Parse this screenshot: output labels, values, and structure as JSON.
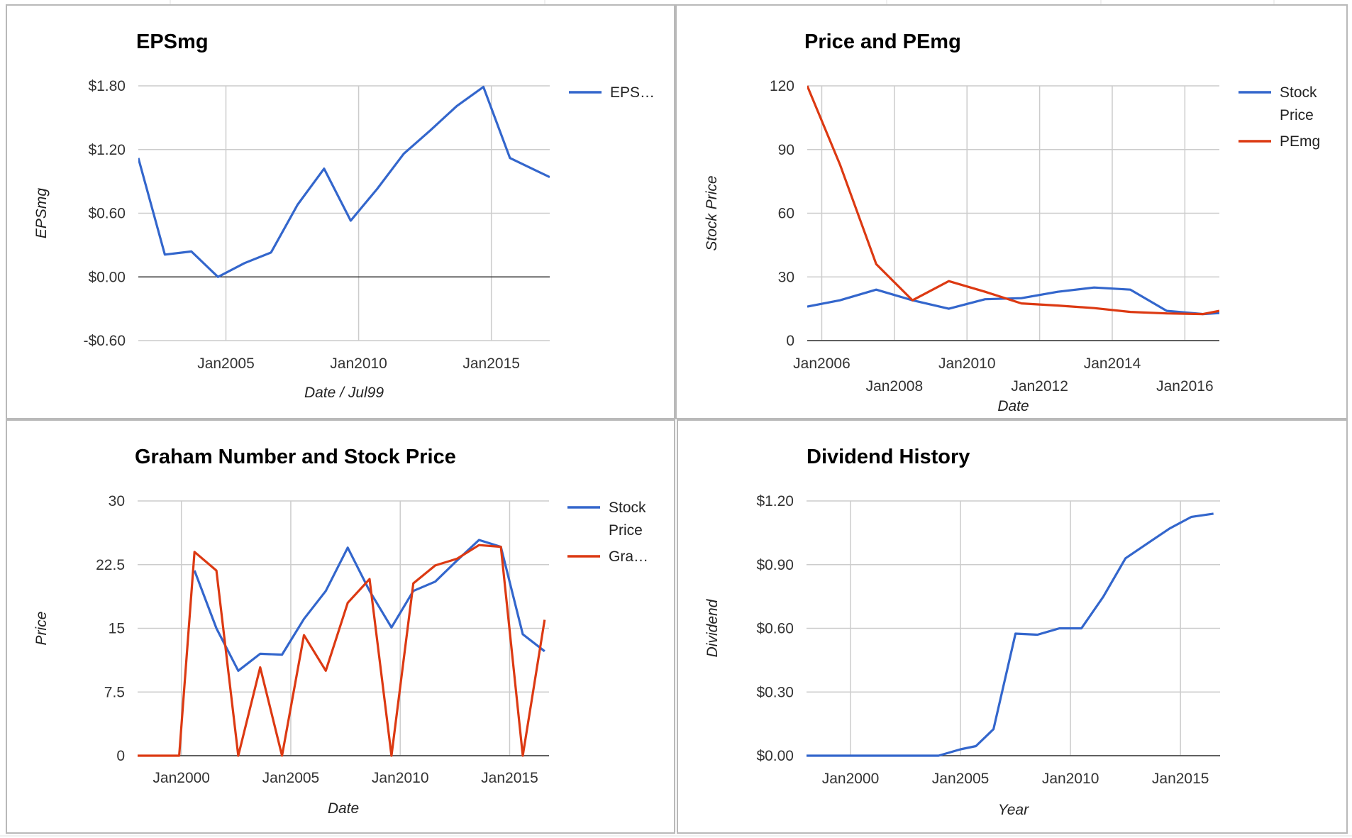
{
  "colors": {
    "blue": "#3366cc",
    "red": "#dc3912",
    "grid": "#cccccc"
  },
  "chart_data": [
    {
      "id": "eps",
      "type": "line",
      "title": "EPSmg",
      "xlabel": "Date / Jul99",
      "ylabel": "EPSmg",
      "xlim": [
        2001.7,
        2017.2
      ],
      "ylim": [
        -0.6,
        1.8
      ],
      "yticks": [
        -0.6,
        0,
        0.6,
        1.2,
        1.8
      ],
      "ytick_labels": [
        "-$0.60",
        "$0.00",
        "$0.60",
        "$1.20",
        "$1.80"
      ],
      "xticks": [
        2005,
        2010,
        2015
      ],
      "xtick_labels": [
        "Jan2005",
        "Jan2010",
        "Jan2015"
      ],
      "legend": [
        "EPS…"
      ],
      "legend_position": "right",
      "series": [
        {
          "name": "EPS…",
          "color": "#3366cc",
          "x": [
            2001.7,
            2002.7,
            2003.7,
            2004.7,
            2005.7,
            2006.7,
            2007.7,
            2008.7,
            2009.7,
            2010.7,
            2011.7,
            2012.7,
            2013.7,
            2014.7,
            2015.7,
            2016.7,
            2017.2
          ],
          "y": [
            1.12,
            0.21,
            0.24,
            0.0,
            0.13,
            0.23,
            0.68,
            1.02,
            0.53,
            0.83,
            1.16,
            1.38,
            1.61,
            1.79,
            1.12,
            1.0,
            0.94
          ]
        }
      ]
    },
    {
      "id": "price",
      "type": "line",
      "title": "Price and PEmg",
      "xlabel": "Date",
      "ylabel": "Stock Price",
      "xlim": [
        2005.6,
        2016.95
      ],
      "ylim": [
        0,
        120
      ],
      "yticks": [
        0,
        30,
        60,
        90,
        120
      ],
      "ytick_labels": [
        "0",
        "30",
        "60",
        "90",
        "120"
      ],
      "xticks": [
        2006,
        2008,
        2010,
        2012,
        2014,
        2016
      ],
      "xtick_labels": [
        "Jan2006",
        "Jan2008",
        "Jan2010",
        "Jan2012",
        "Jan2014",
        "Jan2016"
      ],
      "legend": [
        "Stock Price",
        "PEmg"
      ],
      "legend_position": "right",
      "series": [
        {
          "name": "Stock Price",
          "color": "#3366cc",
          "x": [
            2005.6,
            2006.5,
            2007.5,
            2008.5,
            2009.5,
            2010.5,
            2011.5,
            2012.5,
            2013.5,
            2014.5,
            2015.5,
            2016.5,
            2016.95
          ],
          "y": [
            16,
            19,
            24,
            19,
            15,
            19.5,
            20,
            23,
            25,
            24,
            14,
            12.5,
            13
          ]
        },
        {
          "name": "PEmg",
          "color": "#dc3912",
          "x": [
            2005.6,
            2006.5,
            2007.5,
            2008.5,
            2009.5,
            2010.5,
            2011.5,
            2012.5,
            2013.5,
            2014.5,
            2015.5,
            2016.5,
            2016.95
          ],
          "y": [
            120,
            83,
            36,
            19,
            28,
            23,
            17.5,
            16.5,
            15.3,
            13.5,
            12.8,
            12.5,
            14
          ]
        }
      ]
    },
    {
      "id": "graham",
      "type": "line",
      "title": "Graham Number and Stock Price",
      "xlabel": "Date",
      "ylabel": "Price",
      "xlim": [
        1998,
        2016.8
      ],
      "ylim": [
        0,
        30
      ],
      "yticks": [
        0,
        7.5,
        15,
        22.5,
        30
      ],
      "ytick_labels": [
        "0",
        "7.5",
        "15",
        "22.5",
        "30"
      ],
      "xticks": [
        2000,
        2005,
        2010,
        2015
      ],
      "xtick_labels": [
        "Jan2000",
        "Jan2005",
        "Jan2010",
        "Jan2015"
      ],
      "legend": [
        "Stock Price",
        "Gra…"
      ],
      "legend_position": "right",
      "series": [
        {
          "name": "Stock Price",
          "color": "#3366cc",
          "x": [
            2000.6,
            2001.6,
            2002.6,
            2003.6,
            2004.6,
            2005.6,
            2006.6,
            2007.6,
            2008.6,
            2009.6,
            2010.6,
            2011.6,
            2012.6,
            2013.6,
            2014.6,
            2015.6,
            2016.6
          ],
          "y": [
            21.8,
            15,
            10,
            12,
            11.9,
            16.1,
            19.4,
            24.5,
            19.4,
            15.1,
            19.4,
            20.5,
            23,
            25.4,
            24.6,
            14.3,
            12.3
          ]
        },
        {
          "name": "Gra…",
          "color": "#dc3912",
          "x": [
            1998,
            1999.9,
            2000.6,
            2001.6,
            2002.6,
            2003.6,
            2004.6,
            2005.6,
            2006.6,
            2007.6,
            2008.6,
            2009.6,
            2010.6,
            2011.6,
            2012.6,
            2013.6,
            2014.6,
            2015.6,
            2016.6
          ],
          "y": [
            0,
            0,
            24,
            21.8,
            0,
            10.4,
            0,
            14.2,
            10,
            18,
            20.8,
            0,
            20.3,
            22.4,
            23.2,
            24.8,
            24.6,
            0,
            16
          ]
        }
      ]
    },
    {
      "id": "dividend",
      "type": "line",
      "title": "Dividend History",
      "xlabel": "Year",
      "ylabel": "Dividend",
      "xlim": [
        1998,
        2016.8
      ],
      "ylim": [
        0,
        1.2
      ],
      "yticks": [
        0,
        0.3,
        0.6,
        0.9,
        1.2
      ],
      "ytick_labels": [
        "$0.00",
        "$0.30",
        "$0.60",
        "$0.90",
        "$1.20"
      ],
      "xticks": [
        2000,
        2005,
        2010,
        2015
      ],
      "xtick_labels": [
        "Jan2000",
        "Jan2005",
        "Jan2010",
        "Jan2015"
      ],
      "legend": [],
      "legend_position": "none",
      "series": [
        {
          "name": "",
          "color": "#3366cc",
          "x": [
            1998,
            1999,
            2000,
            2001,
            2002,
            2003,
            2004,
            2005,
            2005.7,
            2006.5,
            2007.5,
            2008.5,
            2009.5,
            2010.5,
            2011.5,
            2012.5,
            2013.5,
            2014.5,
            2015.5,
            2016.5
          ],
          "y": [
            0,
            0,
            0,
            0,
            0,
            0,
            0,
            0.03,
            0.045,
            0.125,
            0.575,
            0.57,
            0.6,
            0.6,
            0.75,
            0.93,
            1.0,
            1.07,
            1.125,
            1.14
          ]
        }
      ]
    }
  ]
}
